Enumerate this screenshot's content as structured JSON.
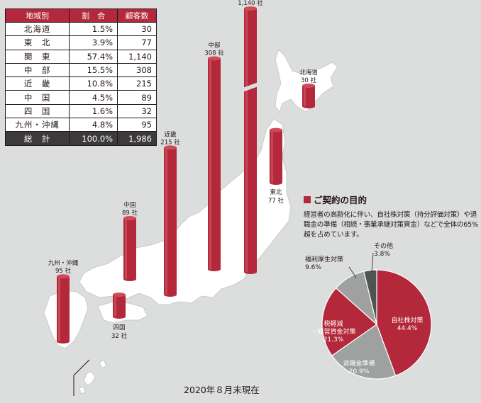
{
  "table": {
    "headers": [
      "地域別",
      "割　合",
      "顧客数"
    ],
    "rows": [
      {
        "region": "北海道",
        "share": "1.5%",
        "count": "30"
      },
      {
        "region": "東　北",
        "share": "3.9%",
        "count": "77"
      },
      {
        "region": "関　東",
        "share": "57.4%",
        "count": "1,140"
      },
      {
        "region": "中　部",
        "share": "15.5%",
        "count": "308"
      },
      {
        "region": "近　畿",
        "share": "10.8%",
        "count": "215"
      },
      {
        "region": "中　国",
        "share": "4.5%",
        "count": "89"
      },
      {
        "region": "四　国",
        "share": "1.6%",
        "count": "32"
      },
      {
        "region": "九州・沖縄",
        "share": "4.8%",
        "count": "95"
      }
    ],
    "total": {
      "region": "総　計",
      "share": "100.0%",
      "count": "1,986"
    }
  },
  "purpose": {
    "title": "ご契約の目的",
    "body": "経営者の高齢化に伴い、自社株対策（持分評価対策）や退職金の準備（相続・事業承継対策資金）などで全体の65%超を占めています。"
  },
  "as_of": "2020年８月末現在",
  "colors": {
    "accent": "#b3283a",
    "dark": "#3c3a3a",
    "map": "#ffffff",
    "background": "#dcdddd"
  },
  "chart_data": [
    {
      "type": "bar",
      "title": "",
      "unit": "社",
      "categories": [
        "九州・沖縄",
        "四国",
        "中国",
        "近畿",
        "中部",
        "関東",
        "東北",
        "北海道"
      ],
      "values": [
        95,
        32,
        89,
        215,
        308,
        1140,
        77,
        30
      ],
      "labels": [
        {
          "region": "九州・沖縄",
          "value": "95 社"
        },
        {
          "region": "四国",
          "value": "32 社"
        },
        {
          "region": "中国",
          "value": "89 社"
        },
        {
          "region": "近畿",
          "value": "215 社"
        },
        {
          "region": "中部",
          "value": "308 社"
        },
        {
          "region": "関東",
          "value": "1,140 社"
        },
        {
          "region": "東北",
          "value": "77 社"
        },
        {
          "region": "北海道",
          "value": "30 社"
        }
      ],
      "axis_break_on": "関東"
    },
    {
      "type": "pie",
      "slices": [
        {
          "label": "自社株対策",
          "value": 44.4,
          "value_label": "44.4%",
          "color": "#b3283a"
        },
        {
          "label": "退職金準備",
          "value": 20.9,
          "value_label": "20.9%",
          "color": "#9fa0a0"
        },
        {
          "label": "税軽減・経営資金対策",
          "value": 21.3,
          "value_label": "21.3%",
          "color": "#b3283a"
        },
        {
          "label": "福利厚生対策",
          "value": 9.6,
          "value_label": "9.6%",
          "color": "#9fa0a0"
        },
        {
          "label": "その他",
          "value": 3.8,
          "value_label": "3.8%",
          "color": "#4d5452"
        }
      ]
    }
  ]
}
